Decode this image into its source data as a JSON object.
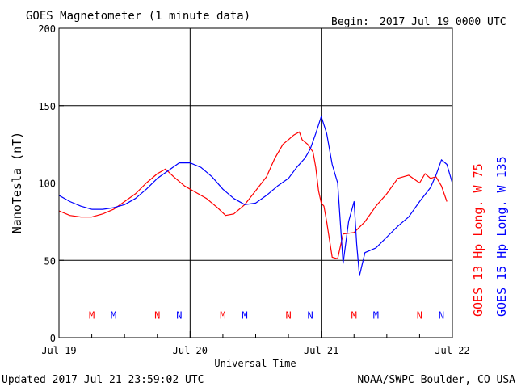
{
  "header": {
    "title": "GOES Magnetometer (1 minute data)",
    "begin_label": "Begin:",
    "begin_value": "2017 Jul 19 0000 UTC"
  },
  "footer": {
    "updated": "Updated 2017 Jul 21 23:59:02 UTC",
    "credit": "NOAA/SWPC Boulder, CO USA"
  },
  "colors": {
    "goes13": "#ff0000",
    "goes15": "#0000ff",
    "axes": "#000000",
    "background": "#ffffff"
  },
  "chart_data": {
    "type": "line",
    "title": "GOES Magnetometer (1 minute data)",
    "xlabel": "Universal Time",
    "ylabel": "NanoTesla (nT)",
    "xlim": [
      "2017-07-19 00:00",
      "2017-07-22 00:00"
    ],
    "ylim": [
      0,
      200
    ],
    "yticks": [
      0,
      50,
      100,
      150,
      200
    ],
    "xticks": [
      {
        "label": "Jul 19",
        "x": "2017-07-19 00:00"
      },
      {
        "label": "Jul 20",
        "x": "2017-07-20 00:00"
      },
      {
        "label": "Jul 21",
        "x": "2017-07-21 00:00"
      },
      {
        "label": "Jul 22",
        "x": "2017-07-22 00:00"
      }
    ],
    "grid": true,
    "legend_position": "right-vertical",
    "series": [
      {
        "name": "GOES 13 Hp  Long. W 75",
        "color": "#ff0000",
        "x": [
          "2017-07-19 00:00",
          "2017-07-19 02:00",
          "2017-07-19 04:00",
          "2017-07-19 06:00",
          "2017-07-19 08:00",
          "2017-07-19 10:00",
          "2017-07-19 12:00",
          "2017-07-19 14:00",
          "2017-07-19 16:00",
          "2017-07-19 18:00",
          "2017-07-19 19:30",
          "2017-07-19 21:00",
          "2017-07-19 23:00",
          "2017-07-20 01:00",
          "2017-07-20 03:00",
          "2017-07-20 05:00",
          "2017-07-20 06:30",
          "2017-07-20 08:00",
          "2017-07-20 10:00",
          "2017-07-20 12:00",
          "2017-07-20 14:00",
          "2017-07-20 15:30",
          "2017-07-20 17:00",
          "2017-07-20 18:00",
          "2017-07-20 19:00",
          "2017-07-20 20:00",
          "2017-07-20 20:30",
          "2017-07-20 21:30",
          "2017-07-20 22:30",
          "2017-07-20 23:00",
          "2017-07-20 23:30",
          "2017-07-21 00:00",
          "2017-07-21 00:30",
          "2017-07-21 01:00",
          "2017-07-21 02:00",
          "2017-07-21 03:00",
          "2017-07-21 04:00",
          "2017-07-21 06:00",
          "2017-07-21 08:00",
          "2017-07-21 10:00",
          "2017-07-21 12:00",
          "2017-07-21 14:00",
          "2017-07-21 16:00",
          "2017-07-21 18:00",
          "2017-07-21 19:00",
          "2017-07-21 20:00",
          "2017-07-21 21:00",
          "2017-07-21 22:00",
          "2017-07-21 23:00"
        ],
        "values": [
          82,
          79,
          78,
          78,
          80,
          83,
          88,
          93,
          100,
          106,
          109,
          104,
          98,
          94,
          90,
          84,
          79,
          80,
          86,
          95,
          104,
          116,
          125,
          128,
          131,
          133,
          128,
          125,
          120,
          110,
          95,
          87,
          85,
          75,
          52,
          51,
          67,
          68,
          75,
          85,
          93,
          103,
          105,
          100,
          106,
          103,
          104,
          98,
          88
        ]
      },
      {
        "name": "GOES 15 Hp  Long. W 135",
        "color": "#0000ff",
        "x": [
          "2017-07-19 00:00",
          "2017-07-19 02:00",
          "2017-07-19 04:00",
          "2017-07-19 06:00",
          "2017-07-19 08:00",
          "2017-07-19 10:00",
          "2017-07-19 12:00",
          "2017-07-19 14:00",
          "2017-07-19 16:00",
          "2017-07-19 18:00",
          "2017-07-19 20:00",
          "2017-07-19 22:00",
          "2017-07-20 00:00",
          "2017-07-20 02:00",
          "2017-07-20 04:00",
          "2017-07-20 06:00",
          "2017-07-20 08:00",
          "2017-07-20 10:00",
          "2017-07-20 12:00",
          "2017-07-20 14:00",
          "2017-07-20 16:00",
          "2017-07-20 18:00",
          "2017-07-20 19:30",
          "2017-07-20 21:00",
          "2017-07-20 22:00",
          "2017-07-20 23:00",
          "2017-07-21 00:00",
          "2017-07-21 01:00",
          "2017-07-21 01:30",
          "2017-07-21 02:00",
          "2017-07-21 03:00",
          "2017-07-21 04:00",
          "2017-07-21 05:00",
          "2017-07-21 06:00",
          "2017-07-21 06:30",
          "2017-07-21 07:00",
          "2017-07-21 08:00",
          "2017-07-21 10:00",
          "2017-07-21 12:00",
          "2017-07-21 14:00",
          "2017-07-21 16:00",
          "2017-07-21 18:00",
          "2017-07-21 20:00",
          "2017-07-21 21:00",
          "2017-07-21 22:00",
          "2017-07-21 23:00",
          "2017-07-21 23:59"
        ],
        "values": [
          92,
          88,
          85,
          83,
          83,
          84,
          86,
          90,
          96,
          103,
          108,
          113,
          113,
          110,
          104,
          96,
          90,
          86,
          87,
          92,
          98,
          103,
          110,
          116,
          122,
          132,
          143,
          132,
          122,
          112,
          100,
          48,
          75,
          88,
          60,
          40,
          55,
          58,
          65,
          72,
          78,
          88,
          97,
          105,
          115,
          112,
          100
        ]
      }
    ],
    "annotations": [
      {
        "text": "M",
        "series": "GOES 13 Hp  Long. W 75",
        "x": "2017-07-19 06:00"
      },
      {
        "text": "M",
        "series": "GOES 15 Hp  Long. W 135",
        "x": "2017-07-19 10:00"
      },
      {
        "text": "N",
        "series": "GOES 13 Hp  Long. W 75",
        "x": "2017-07-19 18:00"
      },
      {
        "text": "N",
        "series": "GOES 15 Hp  Long. W 135",
        "x": "2017-07-19 22:00"
      },
      {
        "text": "M",
        "series": "GOES 13 Hp  Long. W 75",
        "x": "2017-07-20 06:00"
      },
      {
        "text": "M",
        "series": "GOES 15 Hp  Long. W 135",
        "x": "2017-07-20 10:00"
      },
      {
        "text": "N",
        "series": "GOES 13 Hp  Long. W 75",
        "x": "2017-07-20 18:00"
      },
      {
        "text": "N",
        "series": "GOES 15 Hp  Long. W 135",
        "x": "2017-07-20 22:00"
      },
      {
        "text": "M",
        "series": "GOES 13 Hp  Long. W 75",
        "x": "2017-07-21 06:00"
      },
      {
        "text": "M",
        "series": "GOES 15 Hp  Long. W 135",
        "x": "2017-07-21 10:00"
      },
      {
        "text": "N",
        "series": "GOES 13 Hp  Long. W 75",
        "x": "2017-07-21 18:00"
      },
      {
        "text": "N",
        "series": "GOES 15 Hp  Long. W 135",
        "x": "2017-07-21 22:00"
      }
    ],
    "annotation_level": 15
  }
}
